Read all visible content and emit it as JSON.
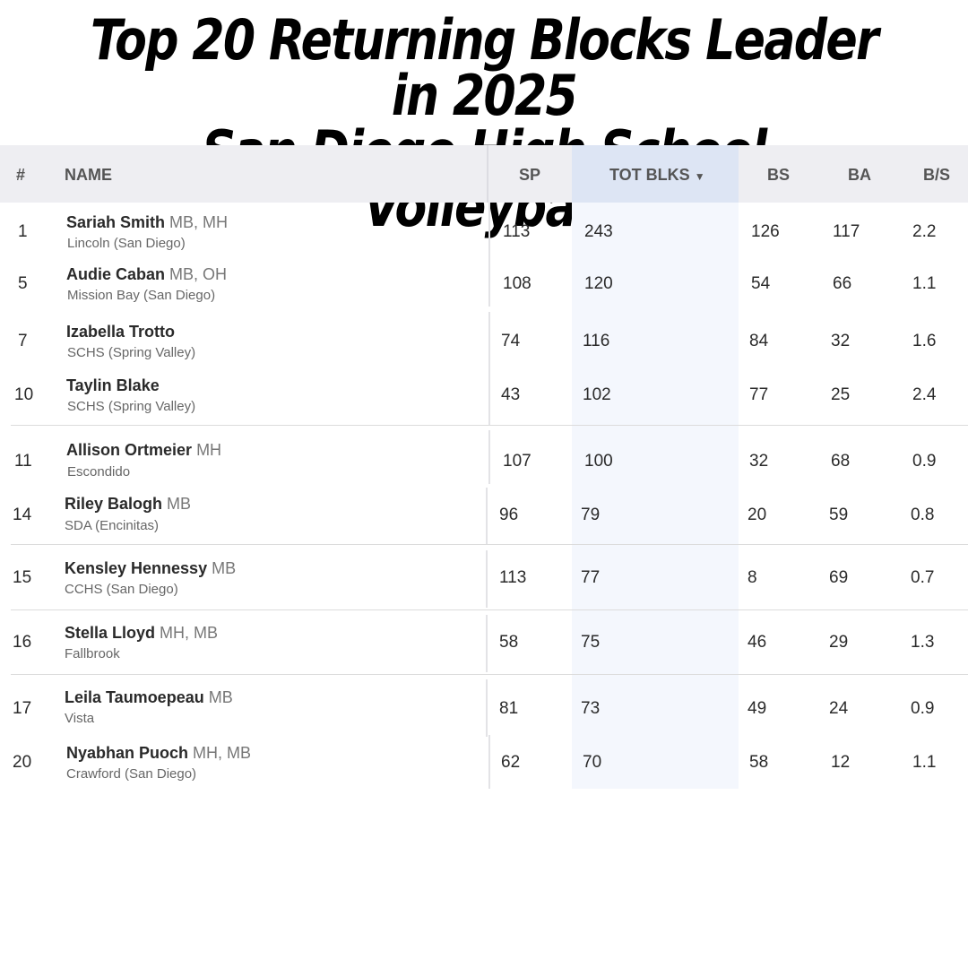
{
  "title": {
    "line1": "Top 20 Returning Blocks Leader in 2025",
    "line2": "San Diego High School Volleyball"
  },
  "table": {
    "headers": {
      "rank": "#",
      "name": "NAME",
      "sp": "SP",
      "tot_blks": "TOT BLKS",
      "sort_icon": "▼",
      "bs": "BS",
      "ba": "BA",
      "bps": "B/S"
    },
    "rows": [
      {
        "rank": "1",
        "name": "Sariah Smith",
        "pos": "MB, MH",
        "school": "Lincoln (San Diego)",
        "sp": "113",
        "tot": "243",
        "bs": "126",
        "ba": "117",
        "bps": "2.2"
      },
      {
        "rank": "5",
        "name": "Audie Caban",
        "pos": "MB, OH",
        "school": "Mission Bay (San Diego)",
        "sp": "108",
        "tot": "120",
        "bs": "54",
        "ba": "66",
        "bps": "1.1"
      },
      {
        "rank": "7",
        "name": "Izabella Trotto",
        "pos": "",
        "school": "SCHS (Spring Valley)",
        "sp": "74",
        "tot": "116",
        "bs": "84",
        "ba": "32",
        "bps": "1.6"
      },
      {
        "rank": "10",
        "name": "Taylin Blake",
        "pos": "",
        "school": "SCHS (Spring Valley)",
        "sp": "43",
        "tot": "102",
        "bs": "77",
        "ba": "25",
        "bps": "2.4"
      },
      {
        "rank": "11",
        "name": "Allison Ortmeier",
        "pos": "MH",
        "school": "Escondido",
        "sp": "107",
        "tot": "100",
        "bs": "32",
        "ba": "68",
        "bps": "0.9"
      },
      {
        "rank": "14",
        "name": "Riley Balogh",
        "pos": "MB",
        "school": "SDA (Encinitas)",
        "sp": "96",
        "tot": "79",
        "bs": "20",
        "ba": "59",
        "bps": "0.8"
      },
      {
        "rank": "15",
        "name": "Kensley Hennessy",
        "pos": "MB",
        "school": "CCHS (San Diego)",
        "sp": "113",
        "tot": "77",
        "bs": "8",
        "ba": "69",
        "bps": "0.7"
      },
      {
        "rank": "16",
        "name": "Stella Lloyd",
        "pos": "MH, MB",
        "school": "Fallbrook",
        "sp": "58",
        "tot": "75",
        "bs": "46",
        "ba": "29",
        "bps": "1.3"
      },
      {
        "rank": "17",
        "name": "Leila Taumoepeau",
        "pos": "MB",
        "school": "Vista",
        "sp": "81",
        "tot": "73",
        "bs": "49",
        "ba": "24",
        "bps": "0.9"
      },
      {
        "rank": "20",
        "name": "Nyabhan Puoch",
        "pos": "MH, MB",
        "school": "Crawford (San Diego)",
        "sp": "62",
        "tot": "70",
        "bs": "58",
        "ba": "12",
        "bps": "1.1"
      }
    ]
  }
}
